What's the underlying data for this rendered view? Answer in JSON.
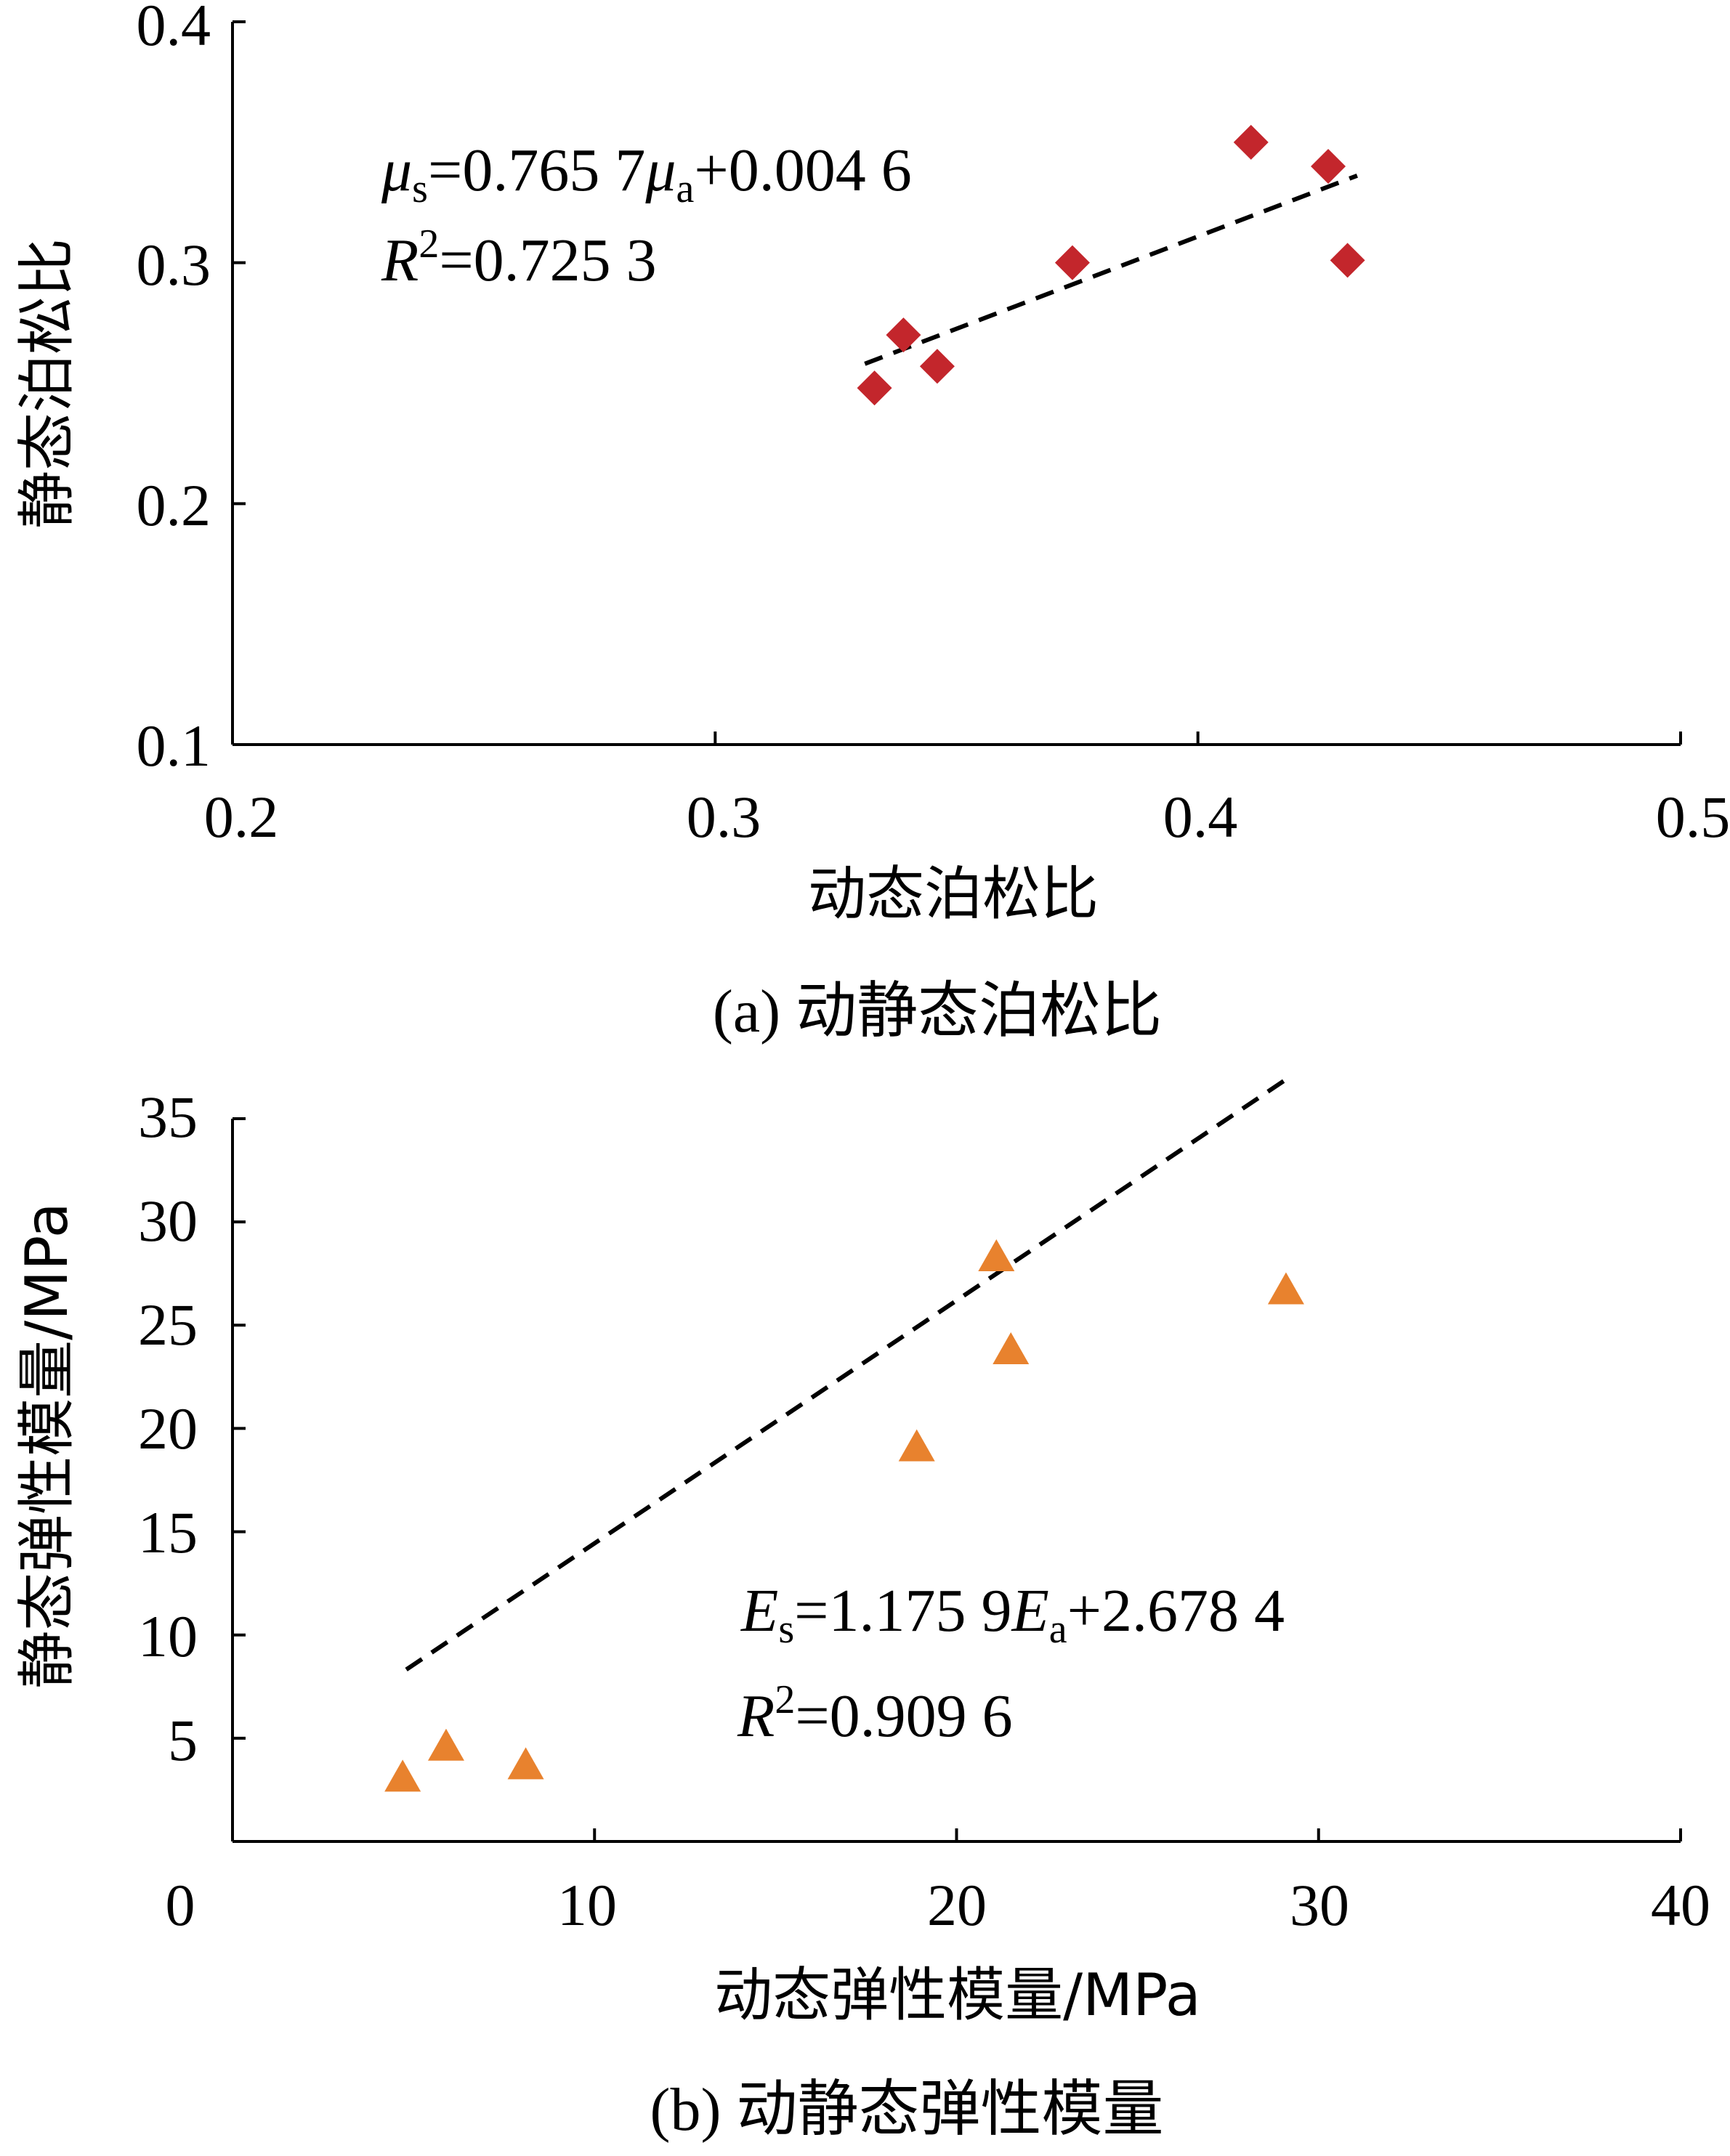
{
  "chart_data": [
    {
      "type": "scatter",
      "panel": "a",
      "caption": "(a) 动静态泊松比",
      "xlabel": "动态泊松比",
      "ylabel": "静态泊松比",
      "xlim": [
        0.2,
        0.5
      ],
      "ylim": [
        0.1,
        0.4
      ],
      "xticks": [
        0.2,
        0.3,
        0.4,
        0.5
      ],
      "xtick_labels": [
        "0.2",
        "0.3",
        "0.4",
        "0.5"
      ],
      "yticks": [
        0.1,
        0.2,
        0.3,
        0.4
      ],
      "ytick_labels": [
        "0.1",
        "0.2",
        "0.3",
        "0.4"
      ],
      "marker": "diamond",
      "marker_color": "#c3262c",
      "points": [
        {
          "x": 0.333,
          "y": 0.248
        },
        {
          "x": 0.339,
          "y": 0.27
        },
        {
          "x": 0.346,
          "y": 0.257
        },
        {
          "x": 0.374,
          "y": 0.3
        },
        {
          "x": 0.411,
          "y": 0.35
        },
        {
          "x": 0.427,
          "y": 0.34
        },
        {
          "x": 0.431,
          "y": 0.301
        }
      ],
      "fit": {
        "slope": 0.7657,
        "intercept": 0.0046,
        "x_range": [
          0.331,
          0.433
        ],
        "style": "dashed"
      },
      "equation": {
        "lhs_var": "μ",
        "lhs_sub": "s",
        "eq1": "=0.765 7",
        "rhs_var": "μ",
        "rhs_sub": "a",
        "eq2": "+0.004 6"
      },
      "r2": {
        "var": "R",
        "sup": "2",
        "value": "=0.725 3"
      }
    },
    {
      "type": "scatter",
      "panel": "b",
      "caption": "(b) 动静态弹性模量",
      "xlabel": "动态弹性模量/MPa",
      "ylabel": "静态弹性模量/MPa",
      "xlim": [
        0,
        40
      ],
      "ylim": [
        0,
        35
      ],
      "xticks": [
        0,
        10,
        20,
        30,
        40
      ],
      "xtick_labels": [
        "0",
        "10",
        "20",
        "30",
        "40"
      ],
      "yticks": [
        5,
        10,
        15,
        20,
        25,
        30,
        35
      ],
      "ytick_labels": [
        "5",
        "10",
        "15",
        "20",
        "25",
        "30",
        "35"
      ],
      "marker": "triangle",
      "marker_color": "#e8822e",
      "points": [
        {
          "x": 4.7,
          "y": 3.0
        },
        {
          "x": 5.9,
          "y": 4.5
        },
        {
          "x": 8.1,
          "y": 3.6
        },
        {
          "x": 18.9,
          "y": 19.0
        },
        {
          "x": 21.1,
          "y": 28.2
        },
        {
          "x": 21.5,
          "y": 23.7
        },
        {
          "x": 29.1,
          "y": 26.6
        }
      ],
      "fit": {
        "slope": 1.1759,
        "intercept": 2.6784,
        "x_range": [
          4.8,
          29.2
        ],
        "style": "dashed"
      },
      "equation": {
        "lhs_var": "E",
        "lhs_sub": "s",
        "eq1": "=1.175 9",
        "rhs_var": "E",
        "rhs_sub": "a",
        "eq2": "+2.678 4"
      },
      "r2": {
        "var": "R",
        "sup": "2",
        "value": "=0.909 6"
      }
    }
  ]
}
